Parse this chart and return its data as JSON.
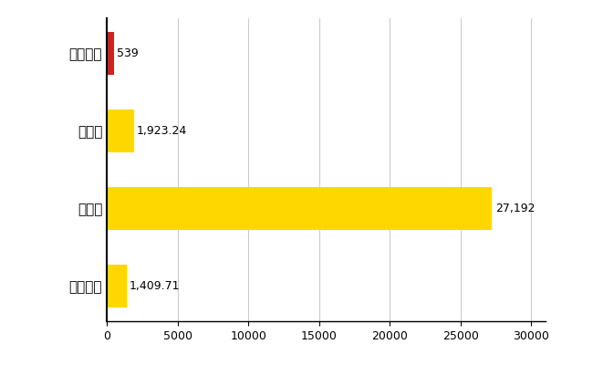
{
  "categories": [
    "全国平均",
    "県最大",
    "県平均",
    "大刀洗町"
  ],
  "values": [
    1409.71,
    27192,
    1923.24,
    539
  ],
  "colors": [
    "#FFD700",
    "#FFD700",
    "#FFD700",
    "#CC2222"
  ],
  "labels": [
    "1,409.71",
    "27,192",
    "1,923.24",
    "539"
  ],
  "xlim": [
    0,
    31000
  ],
  "xticks": [
    0,
    5000,
    10000,
    15000,
    20000,
    25000,
    30000
  ],
  "bar_height": 0.55,
  "grid_color": "#CCCCCC",
  "background_color": "#FFFFFF",
  "label_fontsize": 9,
  "tick_fontsize": 9,
  "ylabel_fontsize": 11
}
